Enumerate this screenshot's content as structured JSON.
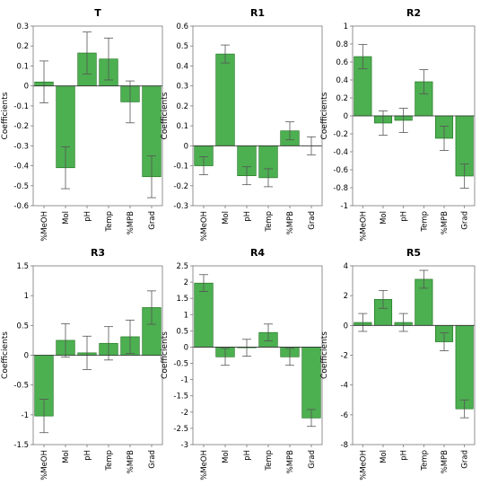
{
  "colors": {
    "bar": "#4caf50",
    "bar_edge": "#1a6e1a",
    "error": "#555555"
  },
  "chart_data": [
    {
      "type": "bar",
      "title": "T",
      "ylabel": "Coefficients",
      "categories": [
        "%MeOH",
        "Mol",
        "pH",
        "Temp",
        "%MPB",
        "Grad"
      ],
      "values": [
        0.02,
        -0.41,
        0.165,
        0.135,
        -0.08,
        -0.455
      ],
      "errors": [
        0.105,
        0.105,
        0.105,
        0.105,
        0.105,
        0.105
      ],
      "ylim": [
        -0.6,
        0.3
      ],
      "yticks": [
        -0.6,
        -0.5,
        -0.4,
        -0.3,
        -0.2,
        -0.1,
        0,
        0.1,
        0.2,
        0.3
      ],
      "ytick_labels": [
        "-0.6",
        "-0.5",
        "-0.4",
        "-0.3",
        "-0.2",
        "-0.1",
        "0",
        "0.1",
        "0.2",
        "0.3"
      ]
    },
    {
      "type": "bar",
      "title": "R1",
      "ylabel": "Coefficients",
      "categories": [
        "%MeOH",
        "Mol",
        "pH",
        "Temp",
        "%MPB",
        "Grad"
      ],
      "values": [
        -0.1,
        0.46,
        -0.15,
        -0.16,
        0.075,
        0.0
      ],
      "errors": [
        0.045,
        0.045,
        0.045,
        0.045,
        0.045,
        0.045
      ],
      "ylim": [
        -0.3,
        0.6
      ],
      "yticks": [
        -0.3,
        -0.2,
        -0.1,
        0,
        0.1,
        0.2,
        0.3,
        0.4,
        0.5,
        0.6
      ],
      "ytick_labels": [
        "-0.3",
        "-0.2",
        "-0.1",
        "0",
        "0.1",
        "0.2",
        "0.3",
        "0.4",
        "0.5",
        "0.6"
      ]
    },
    {
      "type": "bar",
      "title": "R2",
      "ylabel": "Coefficients",
      "categories": [
        "%MeOH",
        "Mol",
        "pH",
        "Temp",
        "%MPB",
        "Grad"
      ],
      "values": [
        0.66,
        -0.08,
        -0.05,
        0.38,
        -0.25,
        -0.67
      ],
      "errors": [
        0.135,
        0.135,
        0.135,
        0.135,
        0.135,
        0.135
      ],
      "ylim": [
        -1,
        1
      ],
      "yticks": [
        -1,
        -0.8,
        -0.6,
        -0.4,
        -0.2,
        0,
        0.2,
        0.4,
        0.6,
        0.8,
        1
      ],
      "ytick_labels": [
        "-1",
        "-0.8",
        "-0.6",
        "-0.4",
        "-0.2",
        "0",
        "0.2",
        "0.4",
        "0.6",
        "0.8",
        "1"
      ]
    },
    {
      "type": "bar",
      "title": "R3",
      "ylabel": "Coefficients",
      "categories": [
        "%MeOH",
        "Mol",
        "pH",
        "Temp",
        "%MPB",
        "Grad"
      ],
      "values": [
        -1.02,
        0.25,
        0.04,
        0.2,
        0.31,
        0.8
      ],
      "errors": [
        0.28,
        0.28,
        0.28,
        0.28,
        0.28,
        0.28
      ],
      "ylim": [
        -1.5,
        1.5
      ],
      "yticks": [
        -1.5,
        -1,
        -0.5,
        0,
        0.5,
        1,
        1.5
      ],
      "ytick_labels": [
        "-1.5",
        "-1",
        "-0.5",
        "0",
        "0.5",
        "1",
        "1.5"
      ]
    },
    {
      "type": "bar",
      "title": "R4",
      "ylabel": "Coefficients",
      "categories": [
        "%MeOH",
        "Mol",
        "pH",
        "Temp",
        "%MPB",
        "Grad"
      ],
      "values": [
        1.97,
        -0.3,
        -0.02,
        0.45,
        -0.3,
        -2.18
      ],
      "errors": [
        0.26,
        0.26,
        0.26,
        0.26,
        0.26,
        0.26
      ],
      "ylim": [
        -3,
        2.5
      ],
      "yticks": [
        -3,
        -2.5,
        -2,
        -1.5,
        -1,
        -0.5,
        0,
        0.5,
        1,
        1.5,
        2,
        2.5
      ],
      "ytick_labels": [
        "-3",
        "-2.5",
        "-2",
        "-1.5",
        "-1",
        "-0.5",
        "0",
        "0.5",
        "1",
        "1.5",
        "2",
        "2.5"
      ]
    },
    {
      "type": "bar",
      "title": "R5",
      "ylabel": "Coefficients",
      "categories": [
        "%MeOH",
        "Mol",
        "pH",
        "Temp",
        "%MPB",
        "Grad"
      ],
      "values": [
        0.2,
        1.75,
        0.2,
        3.1,
        -1.1,
        -5.6
      ],
      "errors": [
        0.6,
        0.6,
        0.6,
        0.6,
        0.6,
        0.6
      ],
      "ylim": [
        -8,
        4
      ],
      "yticks": [
        -8,
        -6,
        -4,
        -2,
        0,
        2,
        4
      ],
      "ytick_labels": [
        "-8",
        "-6",
        "-4",
        "-2",
        "0",
        "2",
        "4"
      ]
    }
  ]
}
